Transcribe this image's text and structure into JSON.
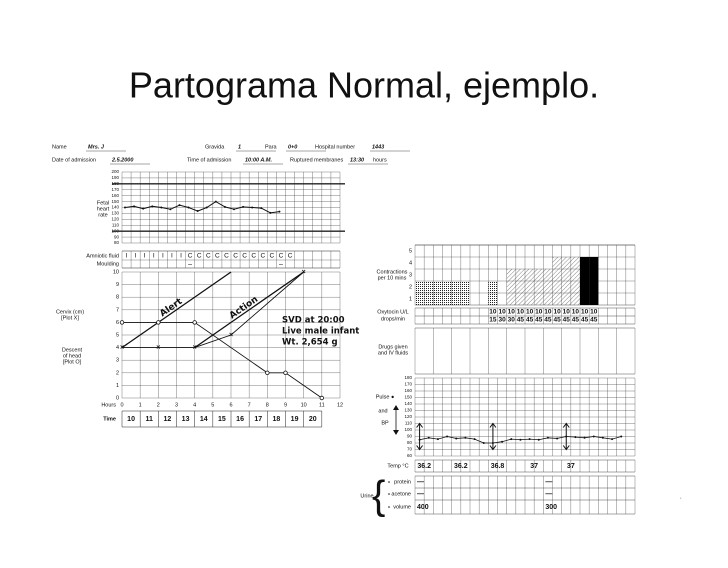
{
  "title": "Partograma Normal, ejemplo.",
  "header": {
    "fields": [
      {
        "label": "Name",
        "value": "Mrs. J"
      },
      {
        "label": "Gravida",
        "value": "1"
      },
      {
        "label": "Para",
        "value": "0+0"
      },
      {
        "label": "Hospital number",
        "value": "1443"
      },
      {
        "label": "Date of admission",
        "value": "2.5.2000"
      },
      {
        "label": "Time of admission",
        "value": "10:00 A.M."
      },
      {
        "label": "Ruptured membranes",
        "value": "13:30"
      }
    ],
    "suffix": "hours"
  },
  "fetal_heart_rate": {
    "label": [
      "Fetal",
      "heart",
      "rate"
    ],
    "ylim": [
      80,
      200
    ],
    "yticks": [
      200,
      190,
      180,
      170,
      160,
      150,
      140,
      130,
      120,
      110,
      100,
      90,
      80
    ],
    "limit_lines": [
      180,
      100
    ],
    "values": [
      140,
      142,
      138,
      142,
      140,
      137,
      144,
      140,
      134,
      140,
      150,
      141,
      137,
      141,
      140,
      139,
      131,
      133
    ]
  },
  "amniotic_fluid": {
    "label": "Amniotic fluid",
    "values": [
      "I",
      "I",
      "I",
      "I",
      "I",
      "I",
      "I",
      "C",
      "C",
      "C",
      "C",
      "C",
      "C",
      "C",
      "C",
      "C",
      "C",
      "C",
      "C"
    ]
  },
  "moulding": {
    "label": "Moulding",
    "values": [
      null,
      null,
      null,
      null,
      null,
      null,
      null,
      "–",
      null,
      null,
      null,
      null,
      null,
      null,
      null,
      null,
      null,
      "–",
      null
    ]
  },
  "cervicograph": {
    "ylim": [
      0,
      10
    ],
    "yticks": [
      0,
      1,
      2,
      3,
      4,
      5,
      6,
      7,
      8,
      9,
      10
    ],
    "xlim": [
      0,
      12
    ],
    "xticks": [
      0,
      1,
      2,
      3,
      4,
      5,
      6,
      7,
      8,
      9,
      10,
      11,
      12
    ],
    "hours_label": "Hours",
    "time_label": "Time",
    "times": [
      "10",
      "11",
      "12",
      "13",
      "14",
      "15",
      "16",
      "17",
      "18",
      "19",
      "20"
    ],
    "cervix": {
      "label": [
        "Cervix (cm)",
        "[Plot X]"
      ],
      "x": [
        0,
        2,
        4,
        6,
        10
      ],
      "values": [
        4,
        4,
        4,
        5,
        10
      ]
    },
    "descent": {
      "label": [
        "Descent",
        "of head",
        "[Plot O]"
      ],
      "x": [
        0,
        2,
        4,
        8,
        9,
        11
      ],
      "values": [
        6,
        6,
        6,
        2,
        2,
        0
      ]
    },
    "alert": {
      "label": "Alert",
      "x": [
        0,
        6
      ],
      "values": [
        4,
        10
      ]
    },
    "action": {
      "label": "Action",
      "x": [
        4,
        10
      ],
      "values": [
        4,
        10
      ]
    },
    "notes": [
      "SVD at 20:00",
      "Live male infant",
      "Wt. 2,654 g"
    ]
  },
  "contractions": {
    "label": [
      "Contractions",
      "per 10 mins"
    ],
    "ylim": [
      0,
      5
    ],
    "yticks": [
      1,
      2,
      3,
      4,
      5
    ],
    "values": [
      2,
      2,
      2,
      2,
      2,
      2,
      0,
      0,
      2,
      0,
      3,
      3,
      3,
      3,
      3,
      4,
      4,
      4,
      4,
      4,
      0,
      0,
      0,
      0
    ],
    "patterns": [
      "dots",
      "dots",
      "dots",
      "dots",
      "dots",
      "dots",
      null,
      null,
      "dots",
      null,
      "hatch",
      "hatch",
      "hatch",
      "hatch",
      "hatch",
      "hatch",
      "hatch",
      "hatch",
      "solid",
      "solid",
      null,
      null,
      null,
      null
    ]
  },
  "oxytocin": {
    "label": [
      "Oxytocin U/L",
      "drops/min"
    ],
    "units": [
      null,
      null,
      null,
      null,
      null,
      null,
      null,
      null,
      10,
      10,
      10,
      10,
      10,
      10,
      10,
      10,
      10,
      10,
      10,
      10,
      null,
      null,
      null,
      null
    ],
    "drops": [
      null,
      null,
      null,
      null,
      null,
      null,
      null,
      null,
      15,
      30,
      30,
      45,
      45,
      45,
      45,
      45,
      45,
      45,
      45,
      45,
      null,
      null,
      null,
      null
    ]
  },
  "drugs": {
    "label": [
      "Drugs given",
      "and IV fluids"
    ]
  },
  "pulse_bp": {
    "labels": [
      "Pulse ●",
      "and",
      "BP"
    ],
    "ylim": [
      60,
      180
    ],
    "yticks": [
      180,
      170,
      160,
      150,
      140,
      130,
      120,
      110,
      100,
      90,
      80,
      70,
      60
    ],
    "pulse": [
      85,
      88,
      86,
      90,
      87,
      88,
      86,
      80,
      80,
      82,
      86,
      85,
      86,
      85,
      88,
      87,
      90,
      89,
      88,
      90,
      88,
      86,
      90,
      null
    ],
    "systolic": [
      110,
      null,
      null,
      null,
      null,
      null,
      null,
      null,
      110,
      null,
      null,
      null,
      null,
      null,
      null,
      null,
      110,
      null,
      null,
      null,
      null,
      null,
      null,
      null
    ],
    "diastolic": [
      70,
      null,
      null,
      null,
      null,
      null,
      null,
      null,
      70,
      null,
      null,
      null,
      null,
      null,
      null,
      null,
      70,
      null,
      null,
      null,
      null,
      null,
      null,
      null
    ]
  },
  "temperature": {
    "label": "Temp °C",
    "values": [
      36.2,
      null,
      null,
      null,
      36.2,
      null,
      null,
      null,
      36.8,
      null,
      null,
      null,
      37,
      null,
      null,
      null,
      37,
      null,
      null,
      null,
      null,
      null,
      null,
      null
    ]
  },
  "urine": {
    "label": "Urine",
    "protein": {
      "label": "protein",
      "values": [
        "—",
        null,
        null,
        null,
        null,
        null,
        null,
        null,
        null,
        null,
        null,
        null,
        null,
        null,
        "—",
        null,
        null,
        null,
        null,
        null,
        null,
        null,
        null,
        null
      ]
    },
    "acetone": {
      "label": "acetone",
      "values": [
        "—",
        null,
        null,
        null,
        null,
        null,
        null,
        null,
        null,
        null,
        null,
        null,
        null,
        null,
        "—",
        null,
        null,
        null,
        null,
        null,
        null,
        null,
        null,
        null
      ]
    },
    "volume": {
      "label": "volume",
      "values": [
        400,
        null,
        null,
        null,
        null,
        null,
        null,
        null,
        null,
        null,
        null,
        null,
        null,
        null,
        300,
        null,
        null,
        null,
        null,
        null,
        null,
        null,
        null,
        null
      ]
    }
  }
}
